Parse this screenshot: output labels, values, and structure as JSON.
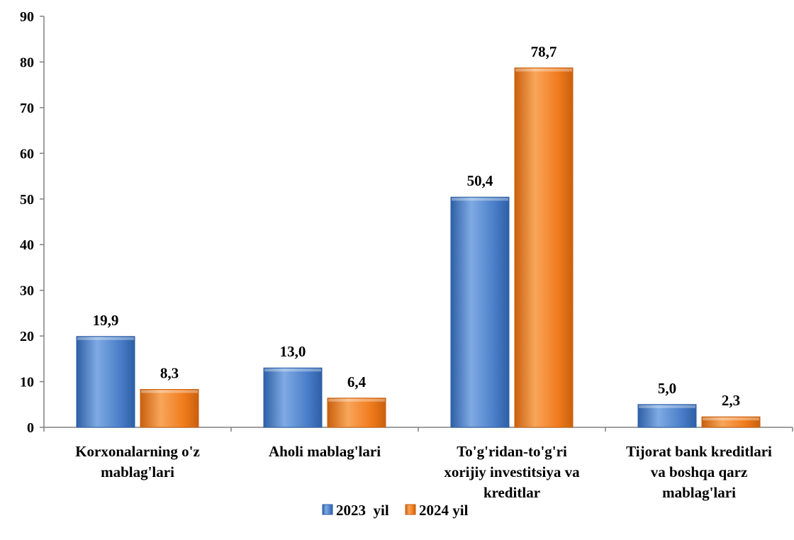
{
  "chart_data": {
    "type": "bar",
    "categories": [
      [
        "Korxonalarning o'z",
        "mablag'lari"
      ],
      [
        "Aholi mablag'lari"
      ],
      [
        "To'g'ridan-to'g'ri",
        "xorijiy investitsiya  va",
        "kreditlar"
      ],
      [
        "Tijorat bank kreditlari",
        "va boshqa  qarz",
        "mablag'lari"
      ]
    ],
    "series": [
      {
        "name": "2023  yil",
        "values": [
          19.9,
          13.0,
          50.4,
          5.0
        ],
        "labels": [
          "19,9",
          "13,0",
          "50,4",
          "5,0"
        ],
        "color": "#4A7EC9",
        "color_light": "#7FAAE3",
        "color_dark": "#2E5FA6"
      },
      {
        "name": "2024 yil",
        "values": [
          8.3,
          6.4,
          78.7,
          2.3
        ],
        "labels": [
          "8,3",
          "6,4",
          "78,7",
          "2,3"
        ],
        "color": "#F07B1C",
        "color_light": "#F8A65B",
        "color_dark": "#C9600E"
      }
    ],
    "yticks": [
      "0",
      "10",
      "20",
      "30",
      "40",
      "50",
      "60",
      "70",
      "80",
      "90"
    ],
    "ylim": [
      0,
      90
    ],
    "title": "",
    "xlabel": "",
    "ylabel": "",
    "grid": false,
    "legend_position": "bottom"
  }
}
